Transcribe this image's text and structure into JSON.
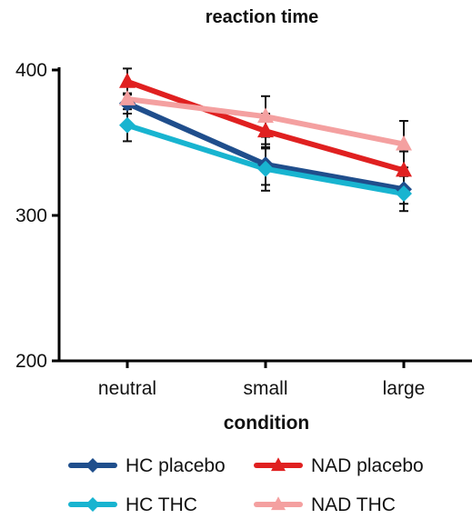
{
  "chart_data": {
    "type": "line",
    "title": "reaction time",
    "xlabel": "condition",
    "ylabel": "",
    "categories": [
      "neutral",
      "small",
      "large"
    ],
    "yticks": [
      200,
      300,
      400
    ],
    "ylim": [
      200,
      400
    ],
    "grid": false,
    "legend_position": "bottom",
    "series": [
      {
        "name": "HC placebo",
        "color": "#1f4e8c",
        "marker": "diamond",
        "values": [
          377,
          335,
          318
        ],
        "error": [
          7,
          14,
          10
        ]
      },
      {
        "name": "HC THC",
        "color": "#18b4d0",
        "marker": "diamond",
        "values": [
          362,
          332,
          315
        ],
        "error": [
          11,
          15,
          12
        ]
      },
      {
        "name": "NAD placebo",
        "color": "#e02020",
        "marker": "triangle",
        "values": [
          392,
          358,
          331
        ],
        "error": [
          9,
          12,
          13
        ]
      },
      {
        "name": "NAD THC",
        "color": "#f4a0a0",
        "marker": "triangle",
        "values": [
          380,
          368,
          349
        ],
        "error": [
          10,
          14,
          16
        ]
      }
    ]
  }
}
